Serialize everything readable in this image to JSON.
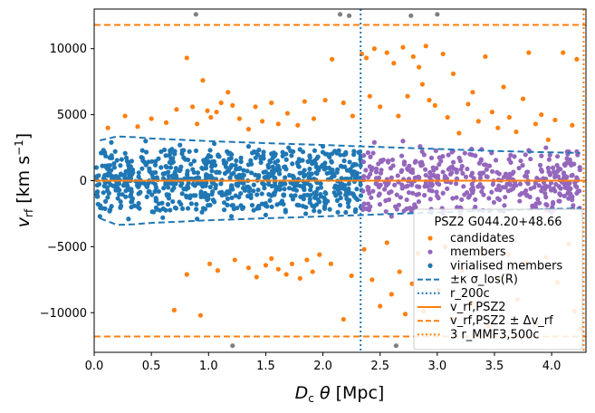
{
  "chart_data": {
    "type": "scatter",
    "xlabel": "D_c θ [Mpc]",
    "ylabel": "v_rf [km s^-1]",
    "xlim": [
      0,
      4.3
    ],
    "ylim": [
      -13000,
      13000
    ],
    "x_ticks": [
      0.0,
      0.5,
      1.0,
      1.5,
      2.0,
      2.5,
      3.0,
      3.5,
      4.0
    ],
    "x_tick_labels": [
      "0.0",
      "0.5",
      "1.0",
      "1.5",
      "2.0",
      "2.5",
      "3.0",
      "3.5",
      "4.0"
    ],
    "y_ticks": [
      -10000,
      -5000,
      0,
      5000,
      10000
    ],
    "y_tick_labels": [
      "−10000",
      "−5000",
      "0",
      "5000",
      "10000"
    ],
    "legend": {
      "title": "PSZ2 G044.20+48.66",
      "placement": "lower-right",
      "entries": [
        {
          "key": "candidates",
          "label": "candidates",
          "marker": "dot",
          "color": "#ff7f0e"
        },
        {
          "key": "members",
          "label": "members",
          "marker": "dot",
          "color": "#9467bd"
        },
        {
          "key": "virialised",
          "label": "virialised members",
          "marker": "dot",
          "color": "#1f77b4"
        },
        {
          "key": "sigma",
          "label": "±κ σ_los(R)",
          "line": "dashed",
          "color": "#1f77b4"
        },
        {
          "key": "r200",
          "label": "r_200c",
          "line": "dotted",
          "color": "#1f77b4"
        },
        {
          "key": "vrf",
          "label": "v_rf,PSZ2",
          "line": "solid",
          "color": "#ff7f0e"
        },
        {
          "key": "dvrf",
          "label": "v_rf,PSZ2 ± Δv_rf",
          "line": "dashed",
          "color": "#ff7f0e"
        },
        {
          "key": "r3",
          "label": "3 r_MMF3,500c",
          "line": "dotted",
          "color": "#ff7f0e"
        }
      ]
    },
    "reference_lines": {
      "v_rf_psz2": 0,
      "delta_v_rf": 11800,
      "r200c": 2.33,
      "three_r_mmf3_500c": 4.28
    },
    "sigma_envelope": {
      "x": [
        0.05,
        0.2,
        0.35,
        0.5,
        0.75,
        1.0,
        1.5,
        2.0,
        2.5,
        3.0,
        3.5,
        4.0,
        4.25
      ],
      "upper": [
        3050,
        3350,
        3300,
        3200,
        3100,
        3000,
        2850,
        2700,
        2550,
        2400,
        2250,
        2150,
        2100
      ],
      "lower": [
        -2850,
        -3350,
        -3300,
        -3200,
        -3100,
        -3000,
        -2850,
        -2700,
        -2550,
        -2400,
        -2250,
        -2150,
        -2100
      ]
    },
    "series": [
      {
        "name": "outliers",
        "color": "#808080",
        "points": [
          [
            0.89,
            12600
          ],
          [
            2.15,
            12600
          ],
          [
            2.23,
            12500
          ],
          [
            2.77,
            12500
          ],
          [
            3.0,
            12600
          ],
          [
            1.21,
            -12500
          ],
          [
            2.64,
            -12500
          ]
        ]
      },
      {
        "name": "candidates",
        "color": "#ff7f0e",
        "points": [
          [
            0.12,
            4000
          ],
          [
            0.27,
            4900
          ],
          [
            0.38,
            4100
          ],
          [
            0.5,
            4700
          ],
          [
            0.63,
            4400
          ],
          [
            0.72,
            5400
          ],
          [
            0.81,
            9300
          ],
          [
            0.86,
            5600
          ],
          [
            0.9,
            4300
          ],
          [
            0.95,
            7600
          ],
          [
            0.99,
            5300
          ],
          [
            1.02,
            4800
          ],
          [
            1.07,
            5200
          ],
          [
            1.11,
            5900
          ],
          [
            1.17,
            6700
          ],
          [
            1.21,
            5700
          ],
          [
            1.27,
            4700
          ],
          [
            1.35,
            3900
          ],
          [
            1.41,
            5600
          ],
          [
            1.47,
            4500
          ],
          [
            1.55,
            5900
          ],
          [
            1.61,
            4300
          ],
          [
            1.69,
            5100
          ],
          [
            1.78,
            4200
          ],
          [
            1.84,
            6000
          ],
          [
            1.92,
            4700
          ],
          [
            2.02,
            6100
          ],
          [
            2.08,
            9200
          ],
          [
            2.18,
            5900
          ],
          [
            2.26,
            4900
          ],
          [
            2.34,
            9600
          ],
          [
            2.38,
            9300
          ],
          [
            2.41,
            6400
          ],
          [
            2.45,
            10000
          ],
          [
            2.5,
            5600
          ],
          [
            2.56,
            9700
          ],
          [
            2.62,
            8900
          ],
          [
            2.66,
            4900
          ],
          [
            2.7,
            10100
          ],
          [
            2.74,
            6400
          ],
          [
            2.79,
            9400
          ],
          [
            2.84,
            8600
          ],
          [
            2.87,
            7300
          ],
          [
            2.9,
            10200
          ],
          [
            2.93,
            6100
          ],
          [
            2.98,
            5700
          ],
          [
            3.05,
            9600
          ],
          [
            3.09,
            4800
          ],
          [
            3.14,
            8100
          ],
          [
            3.19,
            3600
          ],
          [
            3.27,
            5800
          ],
          [
            3.31,
            6700
          ],
          [
            3.36,
            4500
          ],
          [
            3.42,
            9400
          ],
          [
            3.48,
            5200
          ],
          [
            3.53,
            4000
          ],
          [
            3.58,
            7100
          ],
          [
            3.63,
            4800
          ],
          [
            3.69,
            3700
          ],
          [
            3.75,
            6200
          ],
          [
            3.8,
            9700
          ],
          [
            3.86,
            4300
          ],
          [
            3.91,
            5000
          ],
          [
            3.97,
            3100
          ],
          [
            4.03,
            4600
          ],
          [
            4.1,
            9700
          ],
          [
            4.18,
            4200
          ],
          [
            4.22,
            9200
          ],
          [
            0.7,
            -9800
          ],
          [
            0.81,
            -7100
          ],
          [
            0.93,
            -10200
          ],
          [
            1.01,
            -6300
          ],
          [
            1.08,
            -6800
          ],
          [
            1.23,
            -6000
          ],
          [
            1.35,
            -6600
          ],
          [
            1.42,
            -7300
          ],
          [
            1.5,
            -6400
          ],
          [
            1.55,
            -5900
          ],
          [
            1.61,
            -6700
          ],
          [
            1.68,
            -7100
          ],
          [
            1.73,
            -6300
          ],
          [
            1.8,
            -7400
          ],
          [
            1.86,
            -6000
          ],
          [
            1.91,
            -6900
          ],
          [
            1.97,
            -5600
          ],
          [
            2.07,
            -6300
          ],
          [
            2.18,
            -10500
          ],
          [
            2.25,
            -7200
          ],
          [
            2.36,
            -5200
          ],
          [
            2.43,
            -7500
          ],
          [
            2.5,
            -9500
          ],
          [
            2.56,
            -4700
          ],
          [
            2.6,
            -8600
          ],
          [
            2.67,
            -6900
          ],
          [
            2.72,
            -10100
          ],
          [
            2.78,
            -7800
          ],
          [
            2.83,
            -5500
          ],
          [
            2.88,
            -9900
          ],
          [
            2.94,
            -6300
          ],
          [
            3.01,
            -8300
          ],
          [
            3.07,
            -5000
          ],
          [
            3.13,
            -10500
          ],
          [
            3.22,
            -6800
          ],
          [
            3.3,
            -9300
          ],
          [
            3.38,
            -5300
          ],
          [
            3.45,
            -11000
          ],
          [
            3.53,
            -7500
          ],
          [
            3.62,
            -5600
          ],
          [
            3.7,
            -9000
          ],
          [
            3.78,
            -6200
          ],
          [
            3.87,
            -10800
          ],
          [
            3.95,
            -5800
          ],
          [
            4.05,
            -7700
          ],
          [
            4.15,
            -4800
          ],
          [
            4.2,
            -9900
          ],
          [
            4.25,
            -11200
          ]
        ]
      },
      {
        "name": "members",
        "color": "#9467bd",
        "x_range": [
          2.34,
          4.25
        ],
        "v_spread": 1300,
        "count": 430,
        "extra_points": [
          [
            2.45,
            2900
          ],
          [
            2.6,
            -2700
          ],
          [
            2.85,
            2600
          ],
          [
            3.05,
            -2500
          ],
          [
            3.3,
            2400
          ],
          [
            3.55,
            -2300
          ],
          [
            3.8,
            2300
          ],
          [
            4.0,
            -2400
          ],
          [
            4.15,
            2200
          ],
          [
            2.7,
            3000
          ],
          [
            3.2,
            -2600
          ],
          [
            3.95,
            2500
          ]
        ]
      },
      {
        "name": "virialised members",
        "color": "#1f77b4",
        "x_range": [
          0.02,
          2.34
        ],
        "v_spread": 1350,
        "count": 800,
        "extra_points": [
          [
            0.05,
            -2700
          ],
          [
            0.15,
            2900
          ],
          [
            0.3,
            -2900
          ],
          [
            0.45,
            3000
          ],
          [
            0.6,
            -2800
          ],
          [
            0.75,
            2700
          ],
          [
            0.9,
            -2900
          ],
          [
            1.05,
            2800
          ],
          [
            1.2,
            -2700
          ],
          [
            1.35,
            2600
          ],
          [
            1.5,
            -2600
          ],
          [
            1.7,
            2500
          ],
          [
            1.85,
            -2500
          ],
          [
            2.0,
            2600
          ],
          [
            2.2,
            -2400
          ],
          [
            0.02,
            1000
          ],
          [
            0.03,
            -1200
          ]
        ]
      }
    ]
  }
}
